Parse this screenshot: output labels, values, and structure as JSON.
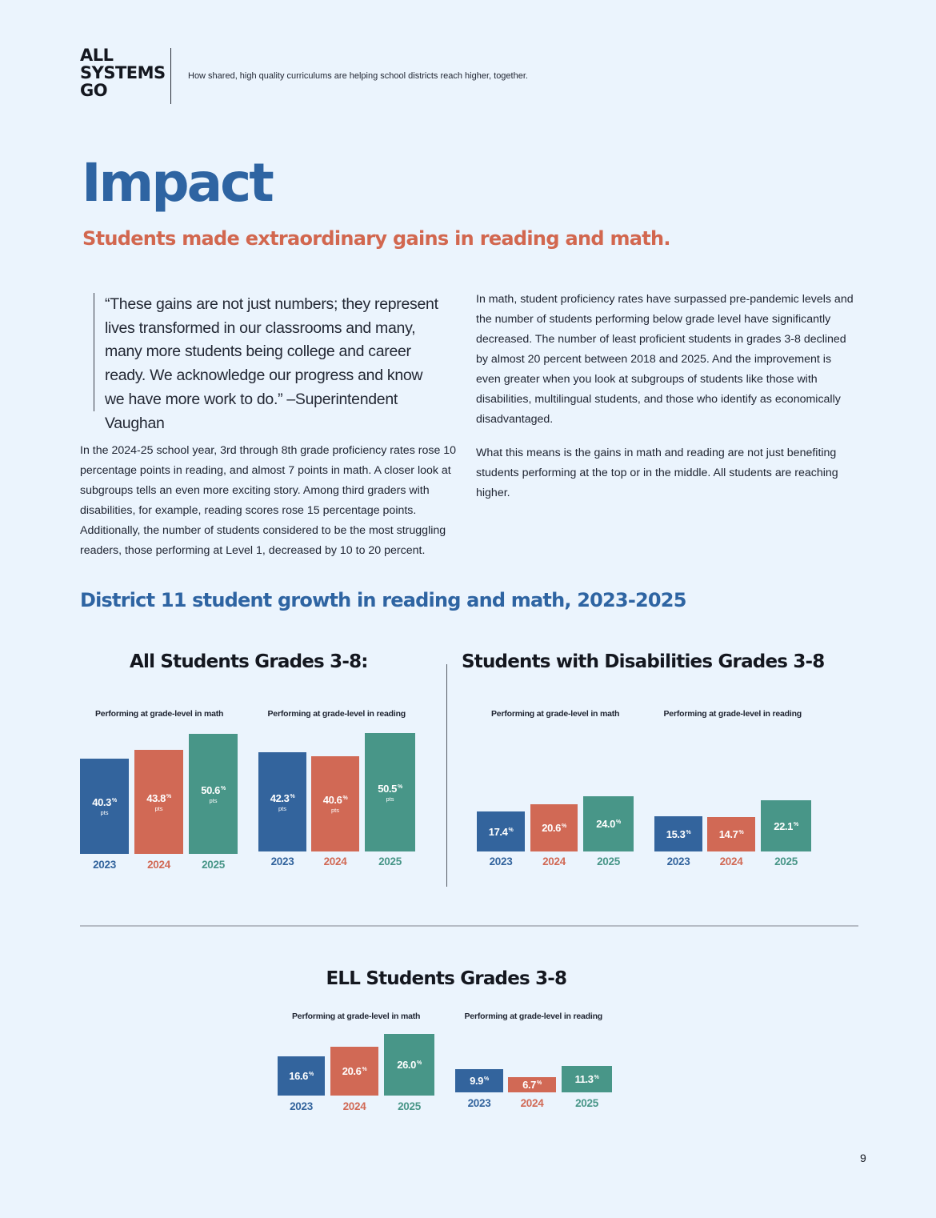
{
  "header": {
    "logo_lines": [
      "ALL",
      "SYSTEMS",
      "GO"
    ],
    "tagline": "How shared, high quality curriculums are helping school districts reach higher, together."
  },
  "title": "Impact",
  "subtitle": "Students made extraordinary gains in reading and math.",
  "quote": "“These gains are not just numbers; they represent lives transformed in our classrooms and many, many more students being college and career ready. We acknowledge our progress and know we have more work to do.” –Superintendent Vaughan",
  "paragraphs": [
    "In the 2024-25 school year, 3rd through 8th grade proficiency rates rose 10 percentage points in reading, and almost 7 points in math. A closer look at subgroups tells an even more exciting story. Among third graders with disabilities, for example, reading scores rose 15 percentage points. Additionally, the number of students considered to be the most struggling readers, those performing at Level 1, decreased by 10 to 20 percent.",
    "In math, student proficiency rates have surpassed pre-pandemic levels and the number of students performing below grade level have significantly decreased. The number of least proficient students in grades 3-8 declined by almost 20 percent between 2018 and 2025. And the improvement is even greater when you look at subgroups of students like those with disabilities, multilingual students, and those who identify as economically disadvantaged.",
    "What this means is the gains in math and reading are not just benefiting students performing at the top or in the middle. All students are reaching higher."
  ],
  "section_title": "District 11 student growth in reading and math, 2023-2025",
  "page_number": "9",
  "colors": {
    "y2023": "#33649d",
    "y2024": "#d16955",
    "y2025": "#489688",
    "title_blue": "#2e64a2",
    "accent": "#d2674f"
  },
  "chart_data": [
    {
      "type": "bar",
      "title": "All Students Grades 3-8:",
      "panels": [
        {
          "subtitle": "Performing at grade-level in math",
          "categories": [
            "2023",
            "2024",
            "2025"
          ],
          "values": [
            40.3,
            43.8,
            50.6
          ],
          "unit": "%",
          "sublabel": "pts"
        },
        {
          "subtitle": "Performing at grade-level in reading",
          "categories": [
            "2023",
            "2024",
            "2025"
          ],
          "values": [
            42.3,
            40.6,
            50.5
          ],
          "unit": "%",
          "sublabel": "pts"
        }
      ]
    },
    {
      "type": "bar",
      "title": "Students with Disabilities Grades 3-8",
      "panels": [
        {
          "subtitle": "Performing at grade-level in math",
          "categories": [
            "2023",
            "2024",
            "2025"
          ],
          "values": [
            17.4,
            20.6,
            24.0
          ],
          "unit": "%"
        },
        {
          "subtitle": "Performing at grade-level in reading",
          "categories": [
            "2023",
            "2024",
            "2025"
          ],
          "values": [
            15.3,
            14.7,
            22.1
          ],
          "unit": "%"
        }
      ]
    },
    {
      "type": "bar",
      "title": "ELL Students Grades 3-8",
      "panels": [
        {
          "subtitle": "Performing at grade-level in math",
          "categories": [
            "2023",
            "2024",
            "2025"
          ],
          "values": [
            16.6,
            20.6,
            26.0
          ],
          "unit": "%"
        },
        {
          "subtitle": "Performing at grade-level in reading",
          "categories": [
            "2023",
            "2024",
            "2025"
          ],
          "values": [
            9.9,
            6.7,
            11.3
          ],
          "unit": "%"
        }
      ]
    }
  ]
}
